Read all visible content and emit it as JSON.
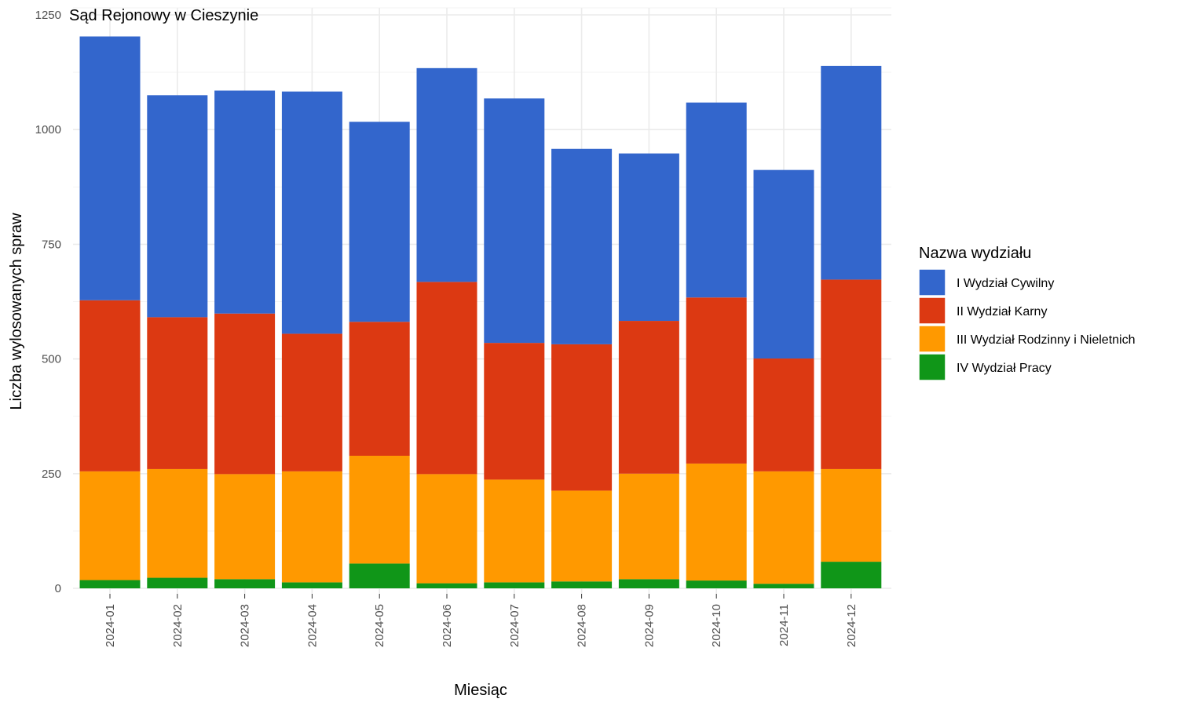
{
  "chart_data": {
    "type": "bar",
    "stacked": true,
    "title": "Sąd Rejonowy w Cieszynie",
    "xlabel": "Miesiąc",
    "ylabel": "Liczba wylosowanych spraw",
    "ylim": [
      0,
      1250
    ],
    "yticks": [
      0,
      250,
      500,
      750,
      1000,
      1250
    ],
    "grid": true,
    "legend": {
      "title": "Nazwa wydziału",
      "position": "right"
    },
    "categories": [
      "2024-01",
      "2024-02",
      "2024-03",
      "2024-04",
      "2024-05",
      "2024-06",
      "2024-07",
      "2024-08",
      "2024-09",
      "2024-10",
      "2024-11",
      "2024-12"
    ],
    "series": [
      {
        "name": "IV Wydział Pracy",
        "color": "#109618",
        "values": [
          18,
          23,
          20,
          13,
          54,
          11,
          13,
          15,
          20,
          17,
          10,
          58
        ]
      },
      {
        "name": "III Wydział Rodzinny i Nieletnich",
        "color": "#FF9900",
        "values": [
          237,
          237,
          229,
          242,
          235,
          238,
          224,
          198,
          230,
          255,
          245,
          202
        ]
      },
      {
        "name": "II Wydział Karny",
        "color": "#DC3912",
        "values": [
          373,
          331,
          350,
          300,
          292,
          419,
          298,
          319,
          333,
          362,
          246,
          413
        ]
      },
      {
        "name": "I Wydział Cywilny",
        "color": "#3366CC",
        "values": [
          575,
          484,
          486,
          528,
          436,
          466,
          533,
          426,
          365,
          425,
          411,
          466
        ]
      }
    ]
  }
}
